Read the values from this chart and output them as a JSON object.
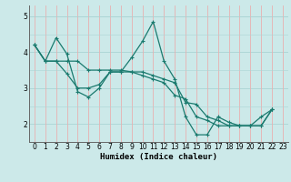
{
  "xlabel": "Humidex (Indice chaleur)",
  "xlim": [
    -0.5,
    23.5
  ],
  "ylim": [
    1.5,
    5.3
  ],
  "xticks": [
    0,
    1,
    2,
    3,
    4,
    5,
    6,
    7,
    8,
    9,
    10,
    11,
    12,
    13,
    14,
    15,
    16,
    17,
    18,
    19,
    20,
    21,
    22,
    23
  ],
  "yticks": [
    2,
    3,
    4,
    5
  ],
  "bg_color": "#cce9e9",
  "grid_color_h": "#aad4d4",
  "grid_color_v": "#e8b0b0",
  "line_color": "#1a7a6e",
  "series": [
    [
      4.2,
      3.75,
      4.4,
      3.95,
      2.9,
      2.75,
      3.0,
      3.45,
      3.45,
      3.85,
      4.3,
      4.85,
      3.75,
      3.25,
      2.2,
      1.7,
      1.7,
      2.2,
      2.05,
      1.95,
      1.95,
      2.2,
      2.4
    ],
    [
      4.2,
      3.75,
      3.75,
      3.75,
      3.75,
      3.5,
      3.5,
      3.5,
      3.5,
      3.45,
      3.45,
      3.35,
      3.25,
      3.15,
      2.6,
      2.55,
      2.2,
      2.1,
      1.95,
      1.95,
      1.95,
      1.95,
      2.4
    ],
    [
      4.2,
      3.75,
      3.75,
      3.4,
      3.0,
      3.0,
      3.1,
      3.45,
      3.45,
      3.45,
      3.35,
      3.25,
      3.15,
      2.8,
      2.7,
      2.2,
      2.1,
      1.95,
      1.95,
      1.95,
      1.95,
      1.95,
      2.4
    ]
  ],
  "x_start": 0
}
